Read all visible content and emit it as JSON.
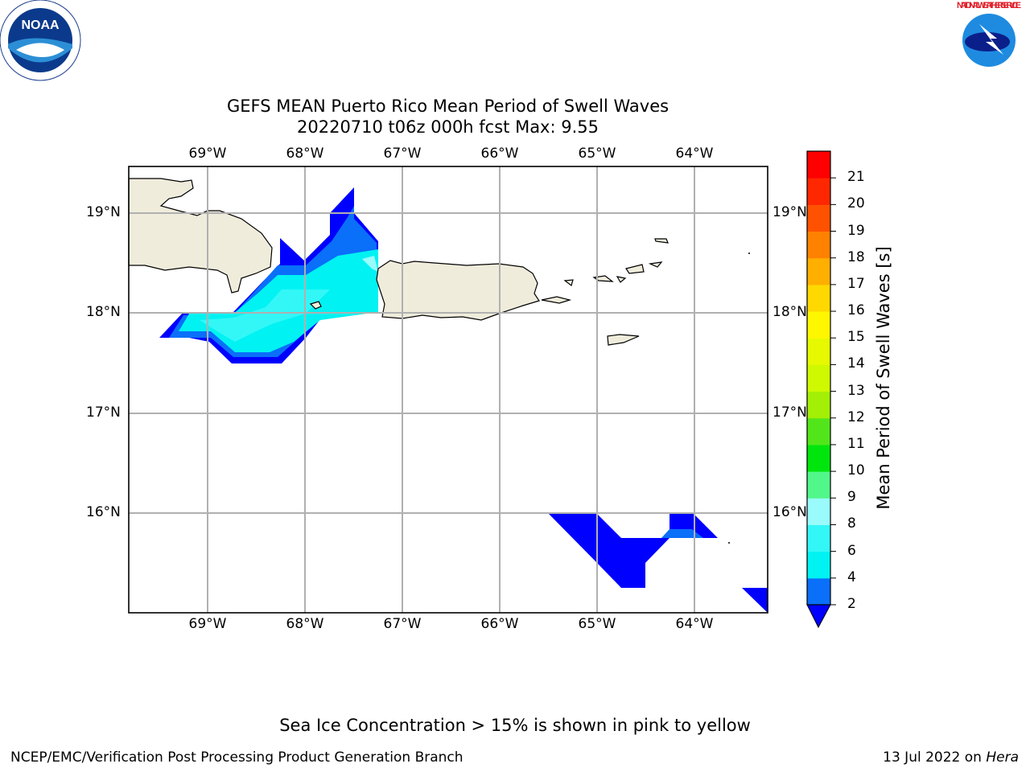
{
  "logos": {
    "left": "NOAA",
    "right": "NATIONAL WEATHER SERVICE"
  },
  "title": {
    "line1": "GEFS MEAN Puerto Rico Mean Period of Swell Waves",
    "line2": "20220710 t06z 000h fcst   Max: 9.55"
  },
  "map": {
    "lon_labels": [
      "69°W",
      "68°W",
      "67°W",
      "66°W",
      "65°W",
      "64°W"
    ],
    "lat_labels": [
      "19°N",
      "18°N",
      "17°N",
      "16°N"
    ],
    "land_color": "#efecdc",
    "grid": true
  },
  "colorbar": {
    "title": "Mean Period of Swell Waves [s]",
    "ticks": [
      "2",
      "4",
      "6",
      "8",
      "9",
      "10",
      "11",
      "12",
      "13",
      "14",
      "15",
      "16",
      "17",
      "18",
      "19",
      "20",
      "21"
    ],
    "colors": [
      "#0a6ff9",
      "#00f2f2",
      "#33f7f7",
      "#99fbfb",
      "#52f78a",
      "#00e60d",
      "#52e61a",
      "#a3ef05",
      "#cef901",
      "#e7f900",
      "#fff700",
      "#ffd800",
      "#ffaf00",
      "#ff8100",
      "#ff5200",
      "#ff2700",
      "#ff0000"
    ],
    "under_color": "#0000ff"
  },
  "footer": {
    "note": "Sea Ice Concentration > 15% is shown in pink to yellow",
    "left": "NCEP/EMC/Verification Post Processing Product Generation Branch",
    "right_date": "13 Jul 2022 on ",
    "right_host": "Hera"
  }
}
